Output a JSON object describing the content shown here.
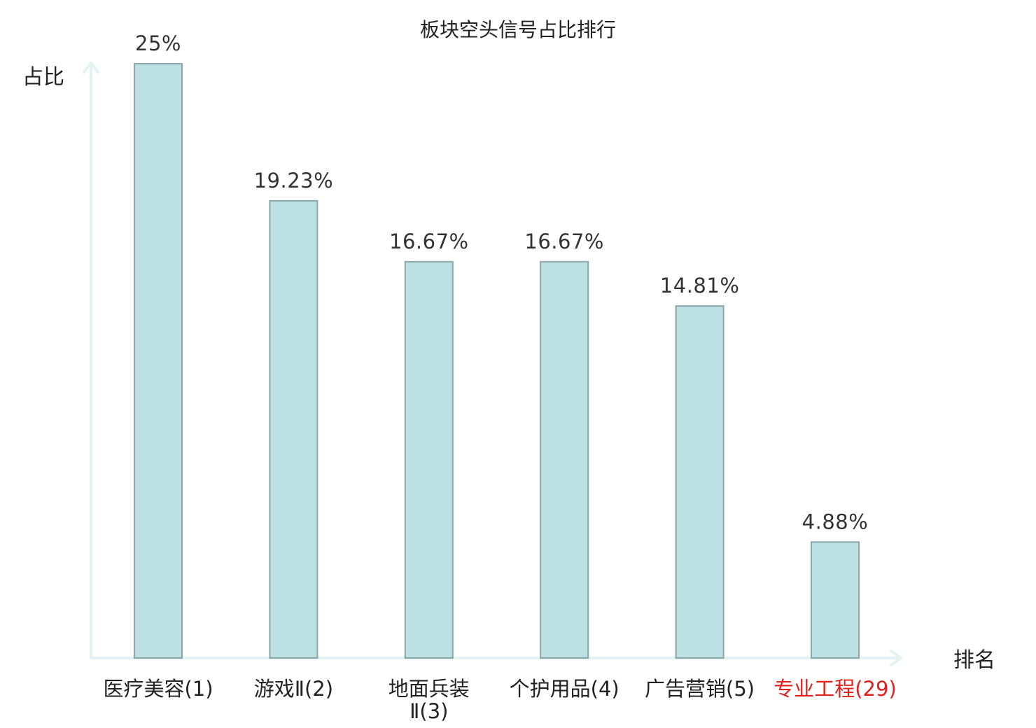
{
  "chart_data": {
    "type": "bar",
    "title": "板块空头信号占比排行",
    "xlabel": "排名",
    "ylabel": "占比",
    "ylim": [
      0,
      25
    ],
    "grid": false,
    "categories": [
      {
        "lines": [
          "医疗美容(1)"
        ],
        "highlight": false
      },
      {
        "lines": [
          "游戏Ⅱ(2)"
        ],
        "highlight": false
      },
      {
        "lines": [
          "地面兵装",
          "Ⅱ(3)"
        ],
        "highlight": false
      },
      {
        "lines": [
          "个护用品(4)"
        ],
        "highlight": false
      },
      {
        "lines": [
          "广告营销(5)"
        ],
        "highlight": false
      },
      {
        "lines": [
          "专业工程(29)"
        ],
        "highlight": true
      }
    ],
    "values": [
      25,
      19.23,
      16.67,
      16.67,
      14.81,
      4.88
    ],
    "value_labels": [
      "25%",
      "19.23%",
      "16.67%",
      "16.67%",
      "14.81%",
      "4.88%"
    ]
  },
  "colors": {
    "bar_fill": "#bde0e2",
    "bar_stroke": "#8aa7aa",
    "axis": "#e3f3f1",
    "highlight_text": "#e0201b"
  }
}
